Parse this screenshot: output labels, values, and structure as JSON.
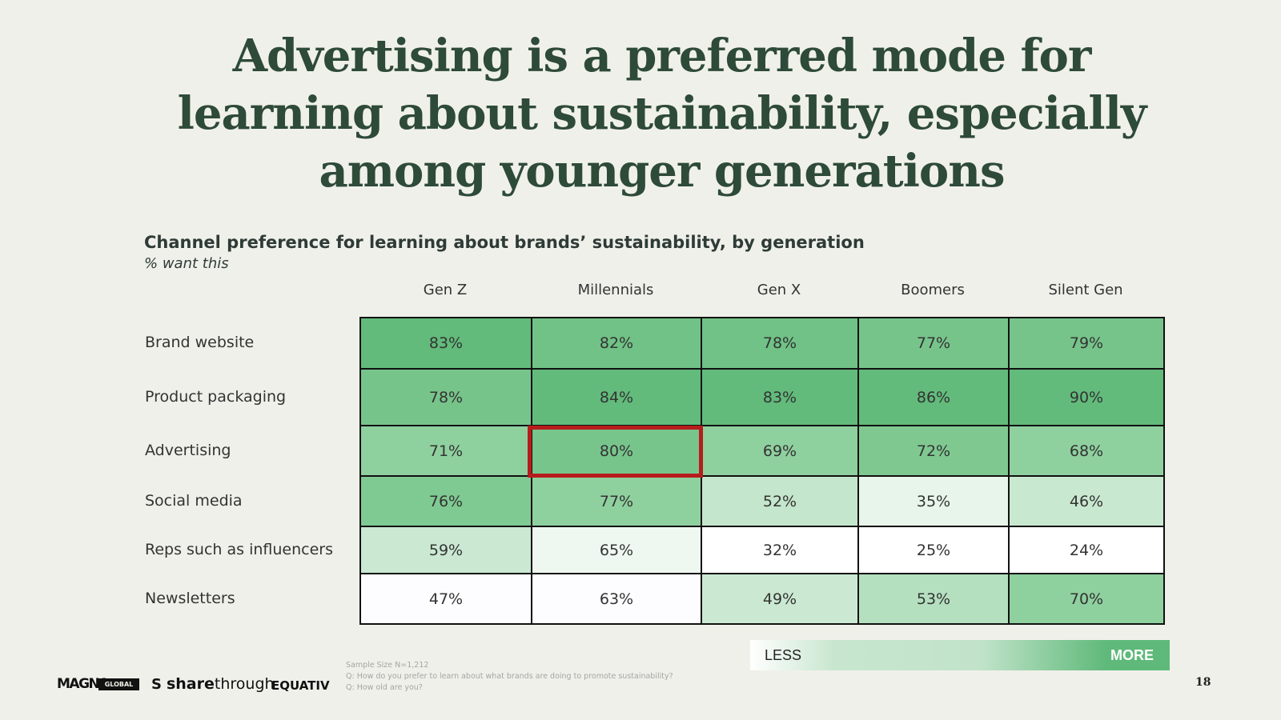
{
  "title_lines": [
    "Advertising is a preferred mode for",
    "learning about sustainability, especially",
    "among younger generations"
  ],
  "chart_data": {
    "type": "table",
    "title": "Channel preference for learning about brands’ sustainability, by generation",
    "subtitle": "% want this",
    "columns": [
      "Gen Z",
      "Millennials",
      "Gen X",
      "Boomers",
      "Silent Gen"
    ],
    "rows": [
      {
        "label": "Brand website",
        "values": [
          83,
          82,
          78,
          77,
          79
        ],
        "display": [
          "83%",
          "82%",
          "78%",
          "77%",
          "79%"
        ]
      },
      {
        "label": "Product packaging",
        "values": [
          78,
          84,
          83,
          86,
          90
        ],
        "display": [
          "78%",
          "84%",
          "83%",
          "86%",
          "90%"
        ]
      },
      {
        "label": "Advertising",
        "values": [
          71,
          80,
          69,
          72,
          68
        ],
        "display": [
          "71%",
          "80%",
          "69%",
          "72%",
          "68%"
        ]
      },
      {
        "label": "Social media",
        "values": [
          76,
          77,
          52,
          35,
          46
        ],
        "display": [
          "76%",
          "77%",
          "52%",
          "35%",
          "46%"
        ]
      },
      {
        "label": "Reps such as influencers",
        "values": [
          59,
          65,
          32,
          25,
          24
        ],
        "display": [
          "59%",
          "65%",
          "32%",
          "25%",
          "24%"
        ]
      },
      {
        "label": "Newsletters",
        "values": [
          47,
          63,
          49,
          53,
          70
        ],
        "display": [
          "47%",
          "63%",
          "49%",
          "53%",
          "70%"
        ]
      }
    ],
    "cell_colors": [
      [
        "#62bb7b",
        "#70c286",
        "#70c286",
        "#77c48b",
        "#77c48b"
      ],
      [
        "#77c48b",
        "#62bb7b",
        "#62bb7b",
        "#62bb7b",
        "#62bb7b"
      ],
      [
        "#8fd09f",
        "#78c58c",
        "#8fd09f",
        "#7fc991",
        "#8fd09f"
      ],
      [
        "#7fca92",
        "#8fd09f",
        "#c4e6cc",
        "#e8f5ea",
        "#c9e8d0"
      ],
      [
        "#cbe9d2",
        "#eff8f0",
        "#ffffff",
        "#ffffff",
        "#ffffff"
      ],
      [
        "#fdfdff",
        "#fdfdff",
        "#cbe9d2",
        "#b5e0c0",
        "#8fd09f"
      ]
    ],
    "highlight": {
      "row": 2,
      "column": 1
    }
  },
  "legend": {
    "less": "LESS",
    "more": "MORE"
  },
  "footnote": [
    "Sample Size N=1,212",
    "Q: How do you prefer to learn about what brands are doing to promote sustainability?",
    "Q: How old are you?"
  ],
  "page_number": "18",
  "logos": {
    "magna": "MAGNA",
    "magna_box": "GLOBAL",
    "sharethrough_share": "share",
    "sharethrough_through": "through",
    "sharethrough_icon": "S",
    "equativ": "EQUATIV"
  }
}
